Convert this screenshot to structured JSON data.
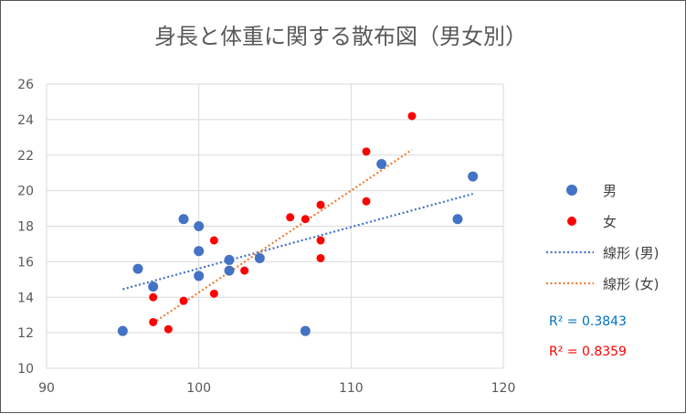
{
  "chart_data": {
    "type": "scatter",
    "title": "身長と体重に関する散布図（男女別）",
    "xlabel": "",
    "ylabel": "",
    "xlim": [
      90,
      120
    ],
    "ylim": [
      10,
      26
    ],
    "xticks": [
      90,
      100,
      110,
      120
    ],
    "yticks": [
      10,
      12,
      14,
      16,
      18,
      20,
      22,
      24,
      26
    ],
    "grid": true,
    "legend_position": "right",
    "series": [
      {
        "name": "男",
        "color": "#4472C4",
        "points": [
          [
            95,
            12.1
          ],
          [
            96,
            15.6
          ],
          [
            97,
            14.6
          ],
          [
            99,
            18.4
          ],
          [
            100,
            18.0
          ],
          [
            100,
            16.6
          ],
          [
            100,
            15.2
          ],
          [
            102,
            16.1
          ],
          [
            102,
            15.5
          ],
          [
            104,
            16.2
          ],
          [
            107,
            12.1
          ],
          [
            112,
            21.5
          ],
          [
            117,
            18.4
          ],
          [
            118,
            20.8
          ]
        ]
      },
      {
        "name": "女",
        "color": "#FF0000",
        "points": [
          [
            97,
            12.6
          ],
          [
            97,
            14.0
          ],
          [
            98,
            12.2
          ],
          [
            99,
            13.8
          ],
          [
            101,
            17.2
          ],
          [
            101,
            14.2
          ],
          [
            103,
            15.5
          ],
          [
            106,
            18.5
          ],
          [
            107,
            18.4
          ],
          [
            108,
            19.2
          ],
          [
            108,
            17.2
          ],
          [
            108,
            16.2
          ],
          [
            111,
            22.2
          ],
          [
            111,
            19.4
          ],
          [
            114,
            24.2
          ]
        ]
      }
    ],
    "trendlines": [
      {
        "name": "線形 (男)",
        "color": "#4472C4",
        "x_range": [
          95,
          118
        ],
        "y_range": [
          14.45,
          19.82
        ]
      },
      {
        "name": "線形 (女)",
        "color": "#ED7D31",
        "x_range": [
          97,
          114
        ],
        "y_range": [
          12.55,
          22.3
        ]
      }
    ],
    "annotations": [
      {
        "text": "R² = 0.3843",
        "color": "#0070C0"
      },
      {
        "text": "R² = 0.8359",
        "color": "#FF0000"
      }
    ]
  }
}
